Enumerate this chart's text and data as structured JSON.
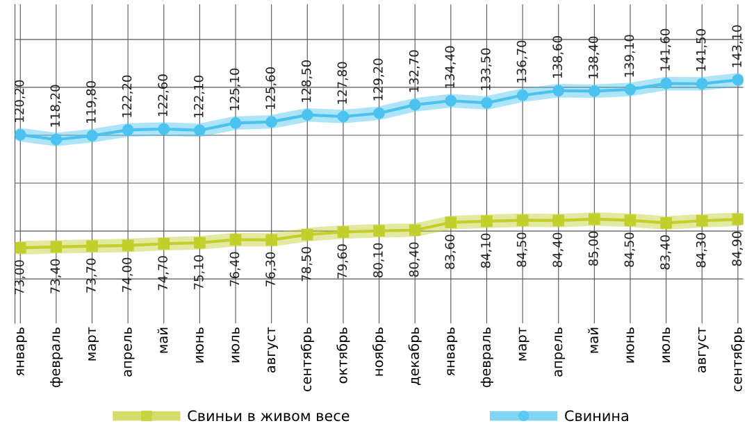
{
  "chart_data": {
    "type": "line",
    "categories": [
      "январь",
      "февраль",
      "март",
      "апрель",
      "май",
      "июнь",
      "июль",
      "август",
      "сентябрь",
      "октябрь",
      "ноябрь",
      "декабрь",
      "январь",
      "февраль",
      "март",
      "апрель",
      "май",
      "июнь",
      "июль",
      "август",
      "сентябрь"
    ],
    "series": [
      {
        "name": "Свиньи в живом весе",
        "color": "#c2cf2c",
        "marker": "square",
        "values": [
          73.0,
          73.4,
          73.7,
          74.0,
          74.7,
          75.1,
          76.4,
          76.3,
          78.5,
          79.6,
          80.1,
          80.4,
          83.6,
          84.1,
          84.5,
          84.4,
          85.0,
          84.5,
          83.4,
          84.3,
          84.9
        ],
        "value_labels": [
          "73,00",
          "73,40",
          "73,70",
          "74,00",
          "74,70",
          "75,10",
          "76,40",
          "76,30",
          "78,50",
          "79,60",
          "80,10",
          "80,40",
          "83,60",
          "84,10",
          "84,50",
          "84,40",
          "85,00",
          "84,50",
          "83,40",
          "84,30",
          "84,90"
        ]
      },
      {
        "name": "Свинина",
        "color": "#4cc3ef",
        "marker": "circle",
        "values": [
          120.2,
          118.2,
          119.8,
          122.2,
          122.6,
          122.1,
          125.1,
          125.6,
          128.5,
          127.8,
          129.2,
          132.7,
          134.4,
          133.5,
          136.7,
          138.6,
          138.4,
          139.1,
          141.6,
          141.5,
          143.1
        ],
        "value_labels": [
          "120,20",
          "118,20",
          "119,80",
          "122,20",
          "122,60",
          "122,10",
          "125,10",
          "125,60",
          "128,50",
          "127,80",
          "129,20",
          "132,70",
          "134,40",
          "133,50",
          "136,70",
          "138,60",
          "138,40",
          "139,10",
          "141,60",
          "141,50",
          "143,10"
        ]
      }
    ],
    "tick_labels": "x",
    "grid": true,
    "legend": "bottom",
    "line_style": "solid"
  }
}
